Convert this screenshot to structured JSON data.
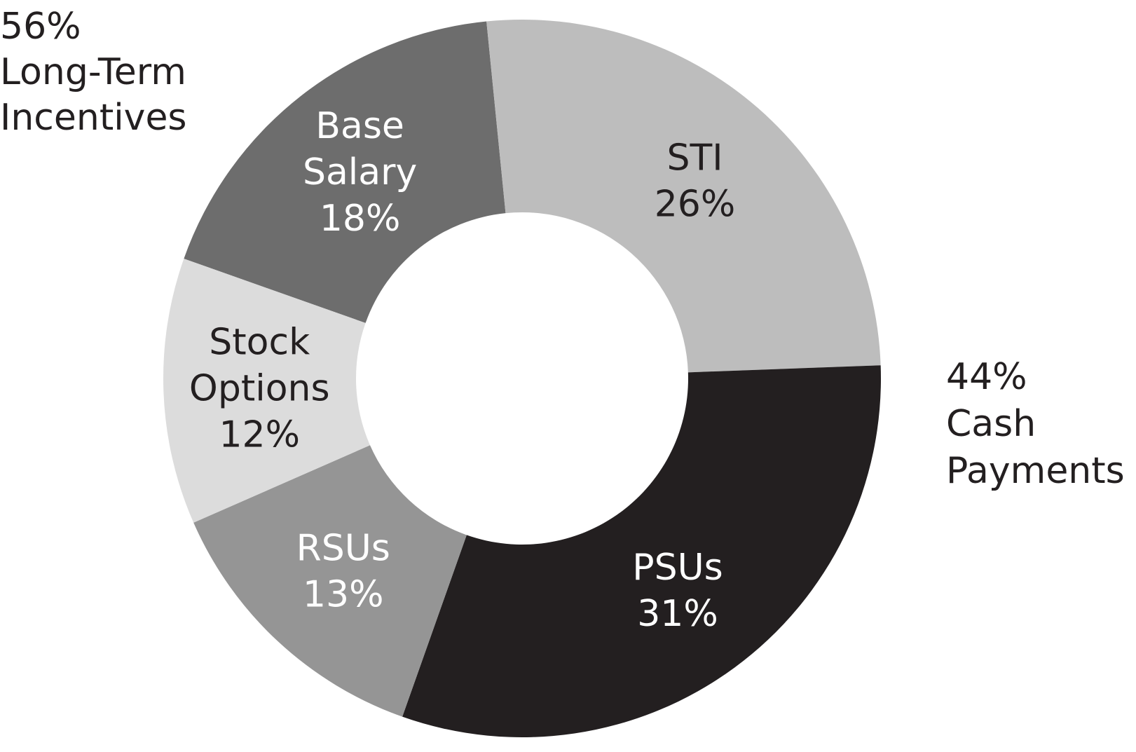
{
  "chart_data": {
    "type": "pie",
    "donut": true,
    "slices": [
      {
        "label_lines": [
          "Base",
          "Salary"
        ],
        "value": 18,
        "value_text": "18%",
        "color": "#6d6d6d",
        "text_color": "#ffffff"
      },
      {
        "label_lines": [
          "STI"
        ],
        "value": 26,
        "value_text": "26%",
        "color": "#bdbdbd",
        "text_color": "#231f20"
      },
      {
        "label_lines": [
          "PSUs"
        ],
        "value": 31,
        "value_text": "31%",
        "color": "#231f20",
        "text_color": "#ffffff"
      },
      {
        "label_lines": [
          "RSUs"
        ],
        "value": 13,
        "value_text": "13%",
        "color": "#959595",
        "text_color": "#ffffff"
      },
      {
        "label_lines": [
          "Stock",
          "Options"
        ],
        "value": 12,
        "value_text": "12%",
        "color": "#dcdcdc",
        "text_color": "#231f20"
      }
    ],
    "groups": [
      {
        "lines": [
          "56%",
          "Long-Term",
          "Incentives"
        ],
        "value": 56,
        "position": "top-left"
      },
      {
        "lines": [
          "44%",
          "Cash",
          "Payments"
        ],
        "value": 44,
        "position": "right"
      }
    ]
  }
}
